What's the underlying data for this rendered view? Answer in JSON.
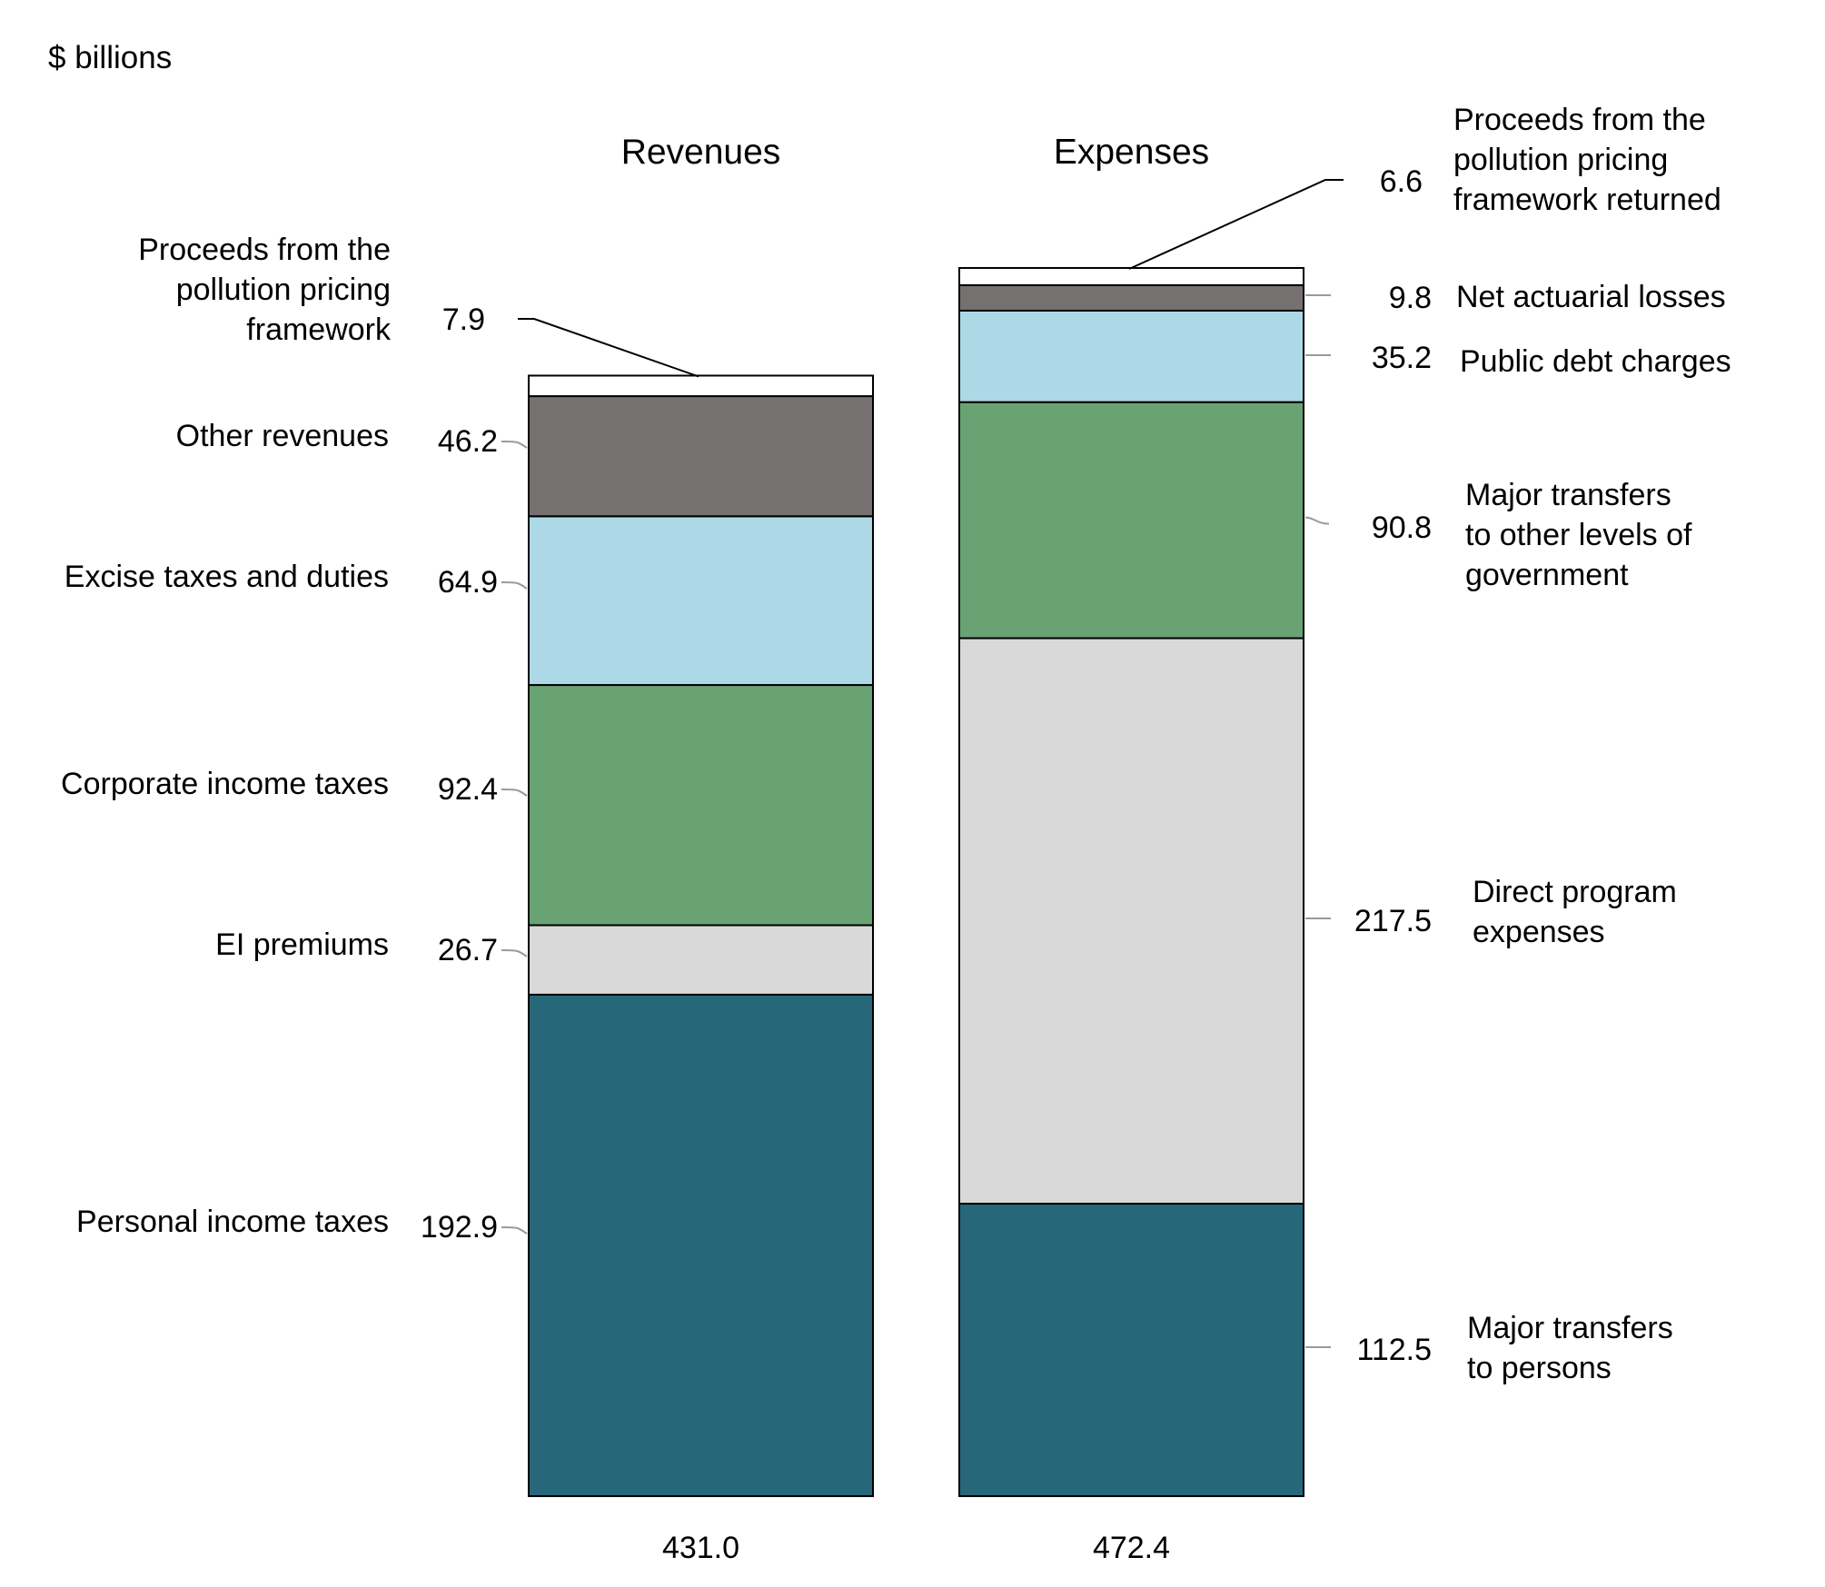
{
  "chart_data": {
    "type": "bar",
    "subtype": "stacked",
    "unit_label": "$ billions",
    "columns": [
      {
        "title": "Revenues",
        "total": "431.0",
        "segments": [
          {
            "label": "Personal income taxes",
            "value": 192.9,
            "display": "192.9",
            "color": "#27677a"
          },
          {
            "label": "EI premiums",
            "value": 26.7,
            "display": "26.7",
            "color": "#d9d9d9"
          },
          {
            "label": "Corporate income taxes",
            "value": 92.4,
            "display": "92.4",
            "color": "#6aa373"
          },
          {
            "label": "Excise taxes and duties",
            "value": 64.9,
            "display": "64.9",
            "color": "#add8e6"
          },
          {
            "label": "Other revenues",
            "value": 46.2,
            "display": "46.2",
            "color": "#767171"
          },
          {
            "label": "Proceeds from the pollution pricing framework",
            "label_lines": [
              "Proceeds from the",
              "pollution pricing",
              "framework"
            ],
            "value": 7.9,
            "display": "7.9",
            "color": "#ffffff"
          }
        ]
      },
      {
        "title": "Expenses",
        "total": "472.4",
        "segments": [
          {
            "label": "Major transfers to persons",
            "label_lines": [
              "Major transfers",
              "to persons"
            ],
            "value": 112.5,
            "display": "112.5",
            "color": "#27677a"
          },
          {
            "label": "Direct program expenses",
            "label_lines": [
              "Direct program",
              "expenses"
            ],
            "value": 217.5,
            "display": "217.5",
            "color": "#d9d9d9"
          },
          {
            "label": "Major transfers to other levels of government",
            "label_lines": [
              "Major transfers",
              "to other levels of",
              "government"
            ],
            "value": 90.8,
            "display": "90.8",
            "color": "#6aa373"
          },
          {
            "label": "Public debt charges",
            "value": 35.2,
            "display": "35.2",
            "color": "#add8e6"
          },
          {
            "label": "Net actuarial losses",
            "value": 9.8,
            "display": "9.8",
            "color": "#767171"
          },
          {
            "label": "Proceeds from the pollution pricing framework returned",
            "label_lines": [
              "Proceeds from the",
              "pollution pricing",
              "framework returned"
            ],
            "value": 6.6,
            "display": "6.6",
            "color": "#ffffff"
          }
        ]
      }
    ],
    "ylim": [
      0,
      472.4
    ]
  }
}
